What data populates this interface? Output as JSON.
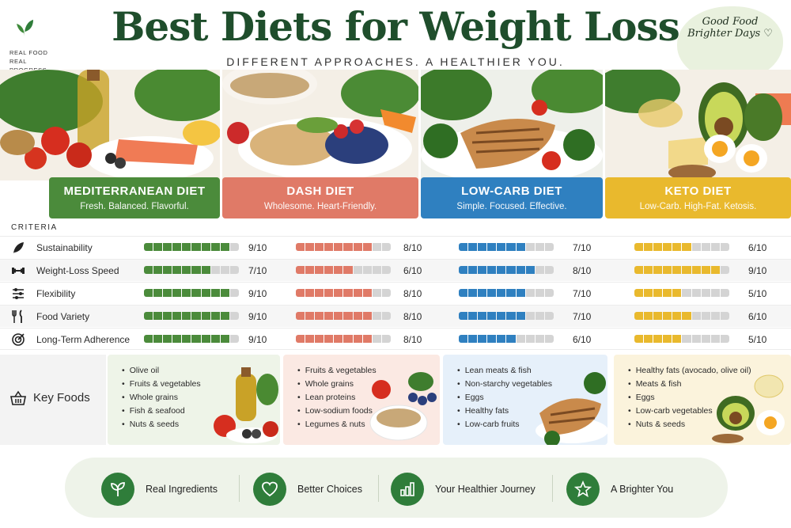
{
  "brand": {
    "tagline": "REAL FOOD REAL PROGRESS"
  },
  "title": "Best Diets for Weight Loss",
  "subtitle": "DIFFERENT APPROACHES. A HEALTHIER YOU.",
  "badge": "Good Food Brighter Days ♡",
  "colors": {
    "mediterranean": "#4b8b3b",
    "dash": "#e07a67",
    "lowcarb": "#2f80c0",
    "keto": "#e9b92d"
  },
  "diets": [
    {
      "name": "MEDITERRANEAN DIET",
      "tagline": "Fresh. Balanced. Flavorful."
    },
    {
      "name": "DASH DIET",
      "tagline": "Wholesome. Heart-Friendly."
    },
    {
      "name": "LOW-CARB DIET",
      "tagline": "Simple. Focused. Effective."
    },
    {
      "name": "KETO DIET",
      "tagline": "Low-Carb. High-Fat. Ketosis."
    }
  ],
  "criteria_header": "CRITERIA",
  "criteria": [
    {
      "label": "Sustainability",
      "icon": "leaf-icon",
      "scores": [
        "9/10",
        "8/10",
        "7/10",
        "6/10"
      ]
    },
    {
      "label": "Weight-Loss Speed",
      "icon": "dumbbell-icon",
      "scores": [
        "7/10",
        "6/10",
        "8/10",
        "9/10"
      ]
    },
    {
      "label": "Flexibility",
      "icon": "sliders-icon",
      "scores": [
        "9/10",
        "8/10",
        "7/10",
        "5/10"
      ]
    },
    {
      "label": "Food Variety",
      "icon": "fork-knife-icon",
      "scores": [
        "9/10",
        "8/10",
        "7/10",
        "6/10"
      ]
    },
    {
      "label": "Long-Term Adherence",
      "icon": "target-icon",
      "scores": [
        "9/10",
        "8/10",
        "6/10",
        "5/10"
      ]
    }
  ],
  "bar_fill": [
    [
      0.9,
      0.8,
      0.7,
      0.6
    ],
    [
      0.7,
      0.6,
      0.8,
      0.9
    ],
    [
      0.9,
      0.8,
      0.7,
      0.5
    ],
    [
      0.9,
      0.8,
      0.7,
      0.6
    ],
    [
      0.9,
      0.8,
      0.6,
      0.5
    ]
  ],
  "key_foods_label": "Key Foods",
  "key_foods": [
    [
      "Olive oil",
      "Fruits & vegetables",
      "Whole grains",
      "Fish & seafood",
      "Nuts & seeds"
    ],
    [
      "Fruits & vegetables",
      "Whole grains",
      "Lean proteins",
      "Low-sodium foods",
      "Legumes & nuts"
    ],
    [
      "Lean meats & fish",
      "Non-starchy vegetables",
      "Eggs",
      "Healthy fats",
      "Low-carb fruits"
    ],
    [
      "Healthy fats (avocado, olive oil)",
      "Meats & fish",
      "Eggs",
      "Low-carb vegetables",
      "Nuts & seeds"
    ]
  ],
  "footer": [
    {
      "label": "Real Ingredients",
      "icon": "sprout-icon"
    },
    {
      "label": "Better Choices",
      "icon": "heart-icon"
    },
    {
      "label": "Your Healthier Journey",
      "icon": "bar-chart-icon"
    },
    {
      "label": "A Brighter You",
      "icon": "star-icon"
    }
  ]
}
